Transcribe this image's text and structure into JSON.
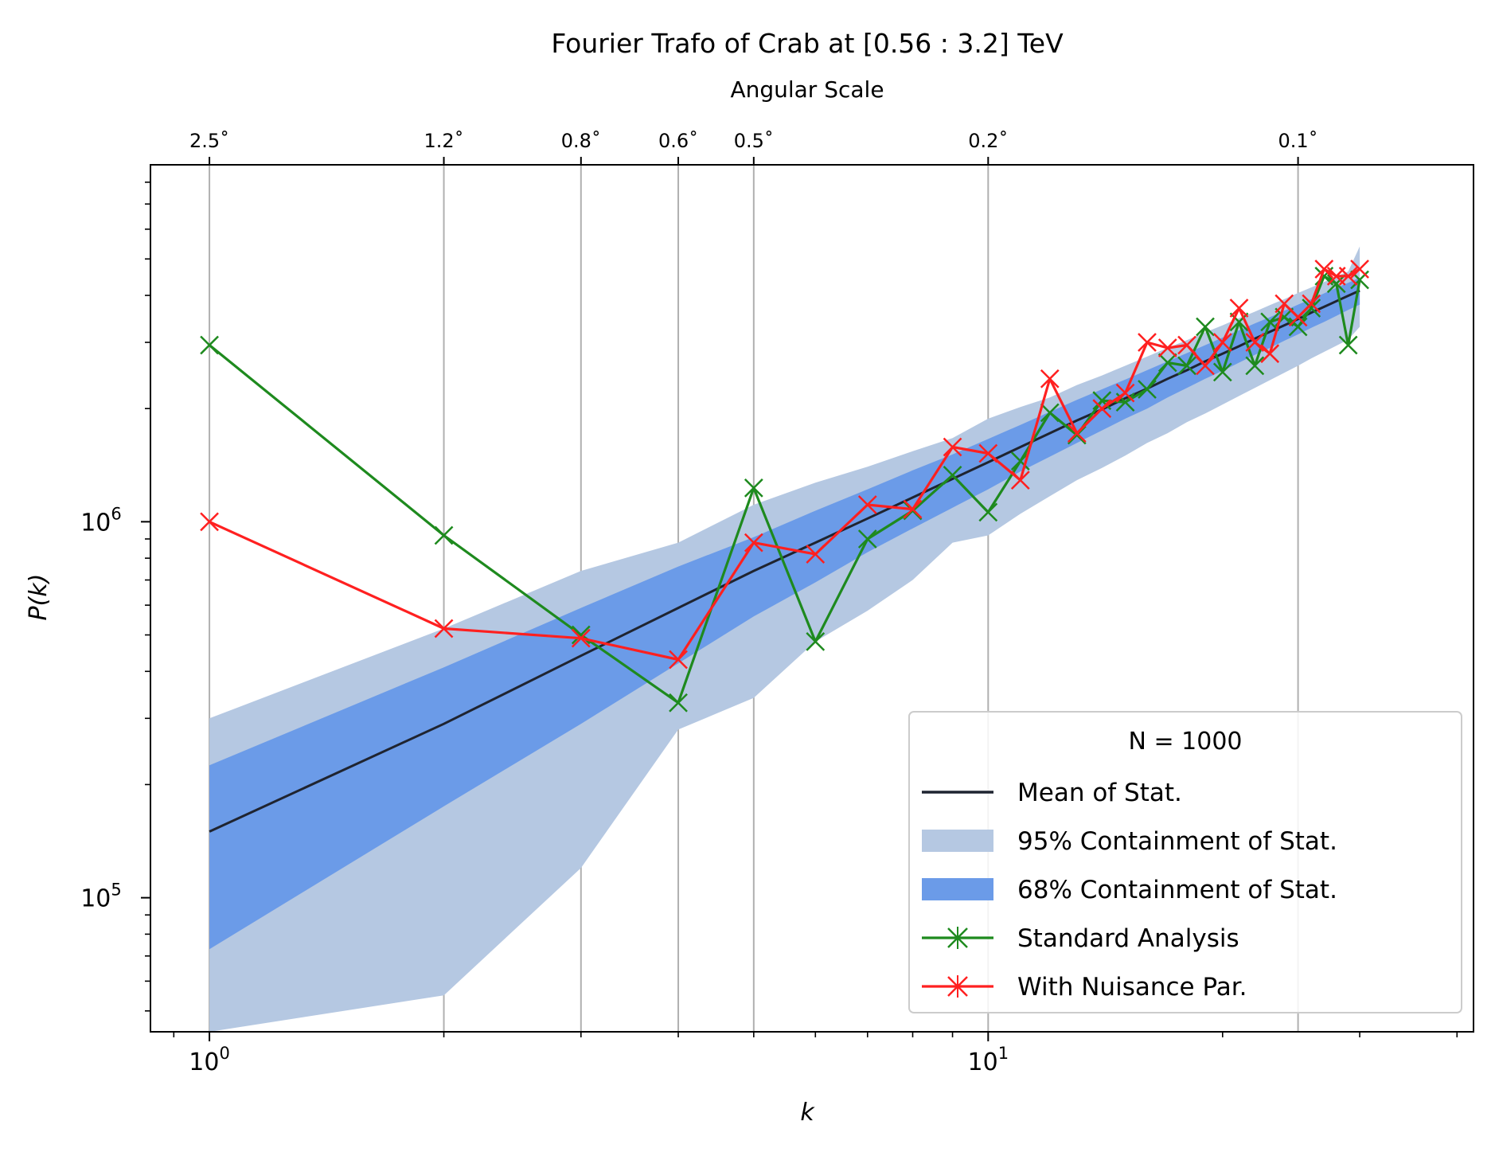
{
  "chart_data": {
    "type": "line",
    "title": "Fourier Trafo of Crab at [0.56 : 3.2] TeV",
    "xlabel": "k",
    "ylabel": "P(k)",
    "x_scale": "log",
    "y_scale": "log",
    "xlim": [
      0.84,
      42.0
    ],
    "ylim": [
      44000,
      8900000
    ],
    "x_ticks": [
      {
        "value": 1,
        "base": "10",
        "exp": "0"
      },
      {
        "value": 10,
        "base": "10",
        "exp": "1"
      }
    ],
    "y_ticks": [
      {
        "value": 100000,
        "base": "10",
        "exp": "5"
      },
      {
        "value": 1000000,
        "base": "10",
        "exp": "6"
      }
    ],
    "top_axis": {
      "label": "Angular Scale",
      "ticks": [
        {
          "k": 1,
          "label": "2.5˚"
        },
        {
          "k": 2,
          "label": "1.2˚"
        },
        {
          "k": 3,
          "label": "0.8˚"
        },
        {
          "k": 4,
          "label": "0.6˚"
        },
        {
          "k": 5,
          "label": "0.5˚"
        },
        {
          "k": 10,
          "label": "0.2˚"
        },
        {
          "k": 25,
          "label": "0.1˚"
        }
      ]
    },
    "grid": "vertical lines at top-axis ticks",
    "legend": {
      "title": "N = 1000",
      "placement": "lower right",
      "entries": [
        {
          "label": "Mean of Stat.",
          "kind": "line",
          "color": "#1f2430"
        },
        {
          "label": "95% Containment of Stat.",
          "kind": "patch",
          "color": "#b5c8e2"
        },
        {
          "label": "68% Containment of Stat.",
          "kind": "patch",
          "color": "#6b9be8"
        },
        {
          "label": "Standard Analysis",
          "kind": "marker-line",
          "color": "#1e8a1e"
        },
        {
          "label": "With Nuisance Par.",
          "kind": "marker-line",
          "color": "#ff2020"
        }
      ]
    },
    "bands": {
      "x": [
        1,
        2,
        3,
        4,
        5,
        6,
        7,
        8,
        9,
        10,
        11,
        12,
        13,
        14,
        15,
        16,
        17,
        18,
        19,
        20,
        21,
        22,
        23,
        24,
        25,
        26,
        27,
        28,
        29,
        30
      ],
      "mean": [
        150000,
        290000,
        440000,
        590000,
        740000,
        880000,
        1020000,
        1160000,
        1300000,
        1440000,
        1580000,
        1720000,
        1860000,
        1990000,
        2130000,
        2260000,
        2400000,
        2530000,
        2670000,
        2800000,
        2930000,
        3070000,
        3200000,
        3330000,
        3460000,
        3600000,
        3730000,
        3860000,
        3990000,
        4120000
      ],
      "ci68_low": [
        73000,
        175000,
        290000,
        420000,
        560000,
        690000,
        830000,
        960000,
        1090000,
        1220000,
        1360000,
        1490000,
        1620000,
        1750000,
        1880000,
        2000000,
        2140000,
        2270000,
        2400000,
        2520000,
        2650000,
        2780000,
        2900000,
        3030000,
        3150000,
        3280000,
        3400000,
        3530000,
        3660000,
        3780000
      ],
      "ci68_high": [
        225000,
        410000,
        590000,
        760000,
        910000,
        1070000,
        1220000,
        1370000,
        1510000,
        1660000,
        1810000,
        1960000,
        2110000,
        2250000,
        2390000,
        2530000,
        2670000,
        2810000,
        2950000,
        3090000,
        3230000,
        3370000,
        3500000,
        3640000,
        3780000,
        3910000,
        4050000,
        4190000,
        4320000,
        4460000
      ],
      "ci95_low": [
        44000,
        55000,
        120000,
        280000,
        340000,
        480000,
        580000,
        700000,
        880000,
        920000,
        1050000,
        1170000,
        1290000,
        1390000,
        1500000,
        1620000,
        1720000,
        1840000,
        1940000,
        2050000,
        2160000,
        2270000,
        2380000,
        2490000,
        2600000,
        2720000,
        2830000,
        2940000,
        3050000,
        3300000
      ],
      "ci95_high": [
        300000,
        520000,
        740000,
        880000,
        1110000,
        1270000,
        1400000,
        1540000,
        1670000,
        1880000,
        2020000,
        2140000,
        2310000,
        2450000,
        2600000,
        2750000,
        2900000,
        3040000,
        3190000,
        3330000,
        3480000,
        3620000,
        3770000,
        3910000,
        4060000,
        4200000,
        4340000,
        4490000,
        4630000,
        5400000
      ]
    },
    "series": [
      {
        "name": "Standard Analysis",
        "color": "#1e8a1e",
        "x": [
          1,
          2,
          3,
          4,
          5,
          6,
          7,
          8,
          9,
          10,
          11,
          12,
          13,
          14,
          15,
          16,
          17,
          18,
          19,
          20,
          21,
          22,
          23,
          24,
          25,
          26,
          27,
          28,
          29,
          30
        ],
        "values": [
          2950000,
          920000,
          500000,
          330000,
          1230000,
          480000,
          900000,
          1070000,
          1330000,
          1060000,
          1450000,
          1950000,
          1700000,
          2100000,
          2080000,
          2250000,
          2650000,
          2600000,
          3300000,
          2500000,
          3400000,
          2600000,
          3400000,
          3500000,
          3300000,
          3700000,
          4500000,
          4300000,
          2950000,
          4400000
        ]
      },
      {
        "name": "With Nuisance Par.",
        "color": "#ff2020",
        "x": [
          1,
          2,
          3,
          4,
          5,
          6,
          7,
          8,
          9,
          10,
          11,
          12,
          13,
          14,
          15,
          16,
          17,
          18,
          19,
          20,
          21,
          22,
          23,
          24,
          25,
          26,
          27,
          28,
          29,
          30
        ],
        "values": [
          1000000,
          520000,
          490000,
          430000,
          880000,
          820000,
          1110000,
          1080000,
          1580000,
          1520000,
          1290000,
          2400000,
          1720000,
          2000000,
          2200000,
          3000000,
          2900000,
          2950000,
          2600000,
          3000000,
          3700000,
          3000000,
          2800000,
          3800000,
          3500000,
          3800000,
          4700000,
          4500000,
          4500000,
          4700000
        ]
      }
    ]
  }
}
